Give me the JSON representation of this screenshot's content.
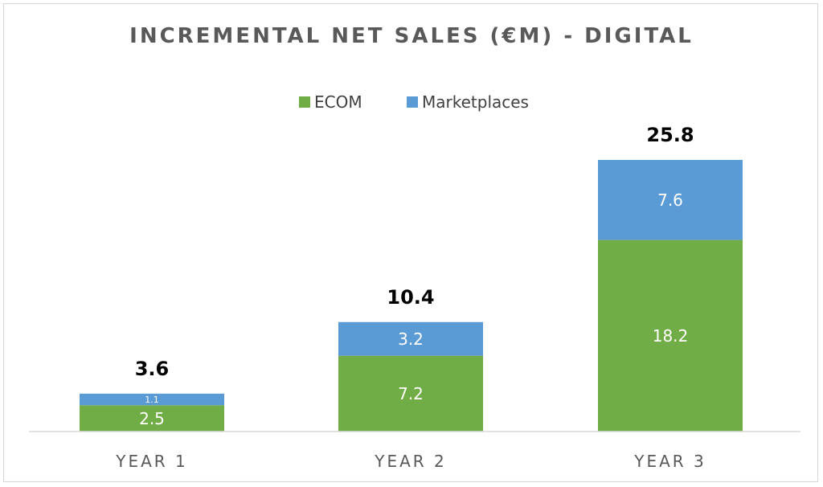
{
  "chart_data": {
    "type": "bar",
    "stacked": true,
    "title": "INCREMENTAL NET SALES (€M) - DIGITAL",
    "categories": [
      "YEAR 1",
      "YEAR 2",
      "YEAR 3"
    ],
    "series": [
      {
        "name": "ECOM",
        "values": [
          2.5,
          7.2,
          18.2
        ],
        "color": "#70ad47"
      },
      {
        "name": "Marketplaces",
        "values": [
          1.1,
          3.2,
          7.6
        ],
        "color": "#5b9bd5"
      }
    ],
    "totals": [
      "3.6",
      "10.4",
      "25.8"
    ],
    "segment_labels": [
      [
        "2.5",
        "7.2",
        "18.2"
      ],
      [
        "1.1",
        "3.2",
        "7.6"
      ]
    ],
    "legend_position": "top",
    "grid": false,
    "ylim": [
      0,
      30
    ]
  }
}
